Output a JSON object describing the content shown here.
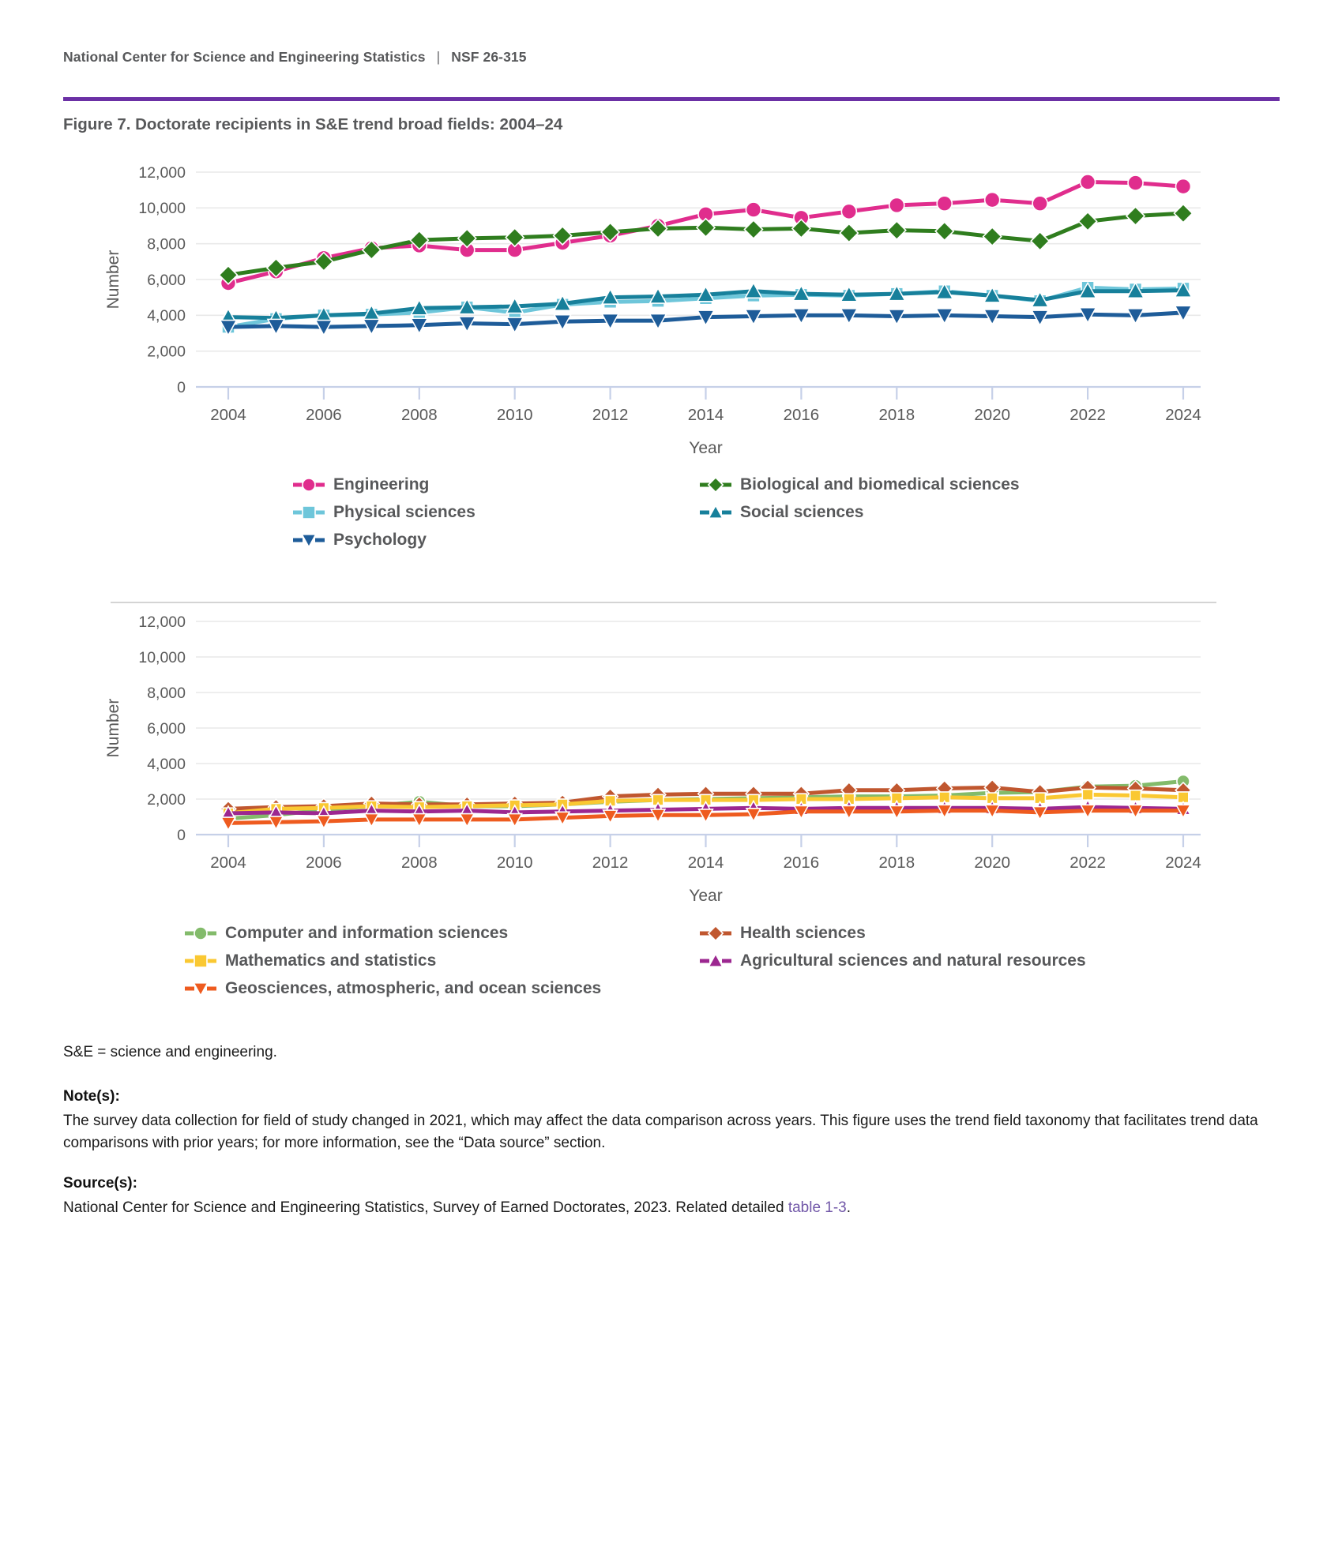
{
  "header": {
    "org": "National Center for Science and Engineering Statistics",
    "separator": "|",
    "report_number": "NSF 26-315"
  },
  "figure": {
    "title": "Figure 7. Doctorate recipients in S&E trend broad fields: 2004–24"
  },
  "colors": {
    "rule_purple": "#6b30a5",
    "link_purple": "#7157a8",
    "axis_text": "#595959",
    "gridline": "#e9e9e9",
    "axis_line": "#c6d0e8"
  },
  "chart_data": [
    {
      "type": "line",
      "xlabel": "Year",
      "ylabel": "Number",
      "ylim": [
        0,
        12000
      ],
      "ytick_interval": 2000,
      "grid": true,
      "legend_position": "bottom",
      "x": [
        2004,
        2005,
        2006,
        2007,
        2008,
        2009,
        2010,
        2011,
        2012,
        2013,
        2014,
        2015,
        2016,
        2017,
        2018,
        2019,
        2020,
        2021,
        2022,
        2023,
        2024
      ],
      "xticks": [
        2004,
        2006,
        2008,
        2010,
        2012,
        2014,
        2016,
        2018,
        2020,
        2022,
        2024
      ],
      "series": [
        {
          "name": "Engineering",
          "color": "#e02d8d",
          "marker": "circle",
          "values": [
            5800,
            6450,
            7200,
            7750,
            7900,
            7650,
            7650,
            8050,
            8450,
            9000,
            9650,
            9900,
            9450,
            9800,
            10150,
            10250,
            10450,
            10250,
            11450,
            11400,
            11200
          ]
        },
        {
          "name": "Biological and biomedical sciences",
          "color": "#2f7d1e",
          "marker": "diamond",
          "values": [
            6250,
            6650,
            7000,
            7650,
            8200,
            8300,
            8350,
            8450,
            8650,
            8850,
            8900,
            8800,
            8850,
            8600,
            8750,
            8700,
            8400,
            8150,
            9250,
            9550,
            9700
          ]
        },
        {
          "name": "Physical sciences",
          "color": "#6ec6da",
          "marker": "square",
          "values": [
            3350,
            3800,
            4000,
            4050,
            4150,
            4450,
            4150,
            4600,
            4750,
            4800,
            4950,
            5100,
            5150,
            5100,
            5200,
            5350,
            5100,
            4800,
            5550,
            5450,
            5500
          ]
        },
        {
          "name": "Social sciences",
          "color": "#17809b",
          "marker": "triangle-up",
          "values": [
            3900,
            3850,
            4000,
            4100,
            4400,
            4450,
            4500,
            4650,
            5000,
            5050,
            5150,
            5350,
            5200,
            5150,
            5200,
            5300,
            5100,
            4850,
            5350,
            5350,
            5400
          ]
        },
        {
          "name": "Psychology",
          "color": "#1e5c99",
          "marker": "triangle-down",
          "values": [
            3350,
            3400,
            3350,
            3400,
            3450,
            3550,
            3500,
            3650,
            3700,
            3700,
            3900,
            3950,
            4000,
            4000,
            3950,
            4000,
            3950,
            3900,
            4050,
            4000,
            4150
          ]
        }
      ]
    },
    {
      "type": "line",
      "xlabel": "Year",
      "ylabel": "Number",
      "ylim": [
        0,
        12000
      ],
      "ytick_interval": 2000,
      "grid": true,
      "legend_position": "bottom",
      "x": [
        2004,
        2005,
        2006,
        2007,
        2008,
        2009,
        2010,
        2011,
        2012,
        2013,
        2014,
        2015,
        2016,
        2017,
        2018,
        2019,
        2020,
        2021,
        2022,
        2023,
        2024
      ],
      "xticks": [
        2004,
        2006,
        2008,
        2010,
        2012,
        2014,
        2016,
        2018,
        2020,
        2022,
        2024
      ],
      "series": [
        {
          "name": "Computer and information sciences",
          "color": "#83bb6b",
          "marker": "circle",
          "values": [
            900,
            1100,
            1400,
            1600,
            1850,
            1600,
            1600,
            1700,
            1850,
            1950,
            2000,
            2050,
            2100,
            2150,
            2150,
            2200,
            2350,
            2400,
            2700,
            2750,
            3000
          ]
        },
        {
          "name": "Health sciences",
          "color": "#c0572f",
          "marker": "diamond",
          "values": [
            1450,
            1550,
            1600,
            1750,
            1700,
            1700,
            1750,
            1800,
            2150,
            2250,
            2300,
            2300,
            2300,
            2500,
            2500,
            2600,
            2650,
            2400,
            2650,
            2600,
            2500
          ]
        },
        {
          "name": "Mathematics and statistics",
          "color": "#fac832",
          "marker": "square",
          "values": [
            1200,
            1450,
            1500,
            1600,
            1550,
            1600,
            1650,
            1700,
            1900,
            1950,
            1950,
            1950,
            2000,
            2000,
            2050,
            2100,
            2050,
            2050,
            2250,
            2200,
            2100
          ]
        },
        {
          "name": "Agricultural sciences and natural resources",
          "color": "#9c2790",
          "marker": "triangle-up",
          "values": [
            1200,
            1250,
            1200,
            1350,
            1300,
            1350,
            1250,
            1300,
            1350,
            1400,
            1450,
            1500,
            1450,
            1500,
            1500,
            1500,
            1500,
            1450,
            1550,
            1500,
            1450
          ]
        },
        {
          "name": "Geosciences, atmospheric, and ocean sciences",
          "color": "#ee5b1f",
          "marker": "triangle-down",
          "values": [
            650,
            700,
            750,
            850,
            850,
            850,
            850,
            950,
            1050,
            1100,
            1100,
            1150,
            1300,
            1300,
            1300,
            1350,
            1350,
            1250,
            1350,
            1350,
            1350
          ]
        }
      ]
    }
  ],
  "footnote": {
    "abbreviation": "S&E = science and engineering."
  },
  "notes": {
    "heading": "Note(s):",
    "text": "The survey data collection for field of study changed in 2021, which may affect the data comparison across years. This figure uses the trend field taxonomy that facilitates trend data comparisons with prior years; for more information, see the “Data source” section."
  },
  "sources": {
    "heading": "Source(s):",
    "text_before_link": "National Center for Science and Engineering Statistics, Survey of Earned Doctorates, 2023. Related detailed ",
    "link": "table 1-3",
    "text_after_link": "."
  }
}
